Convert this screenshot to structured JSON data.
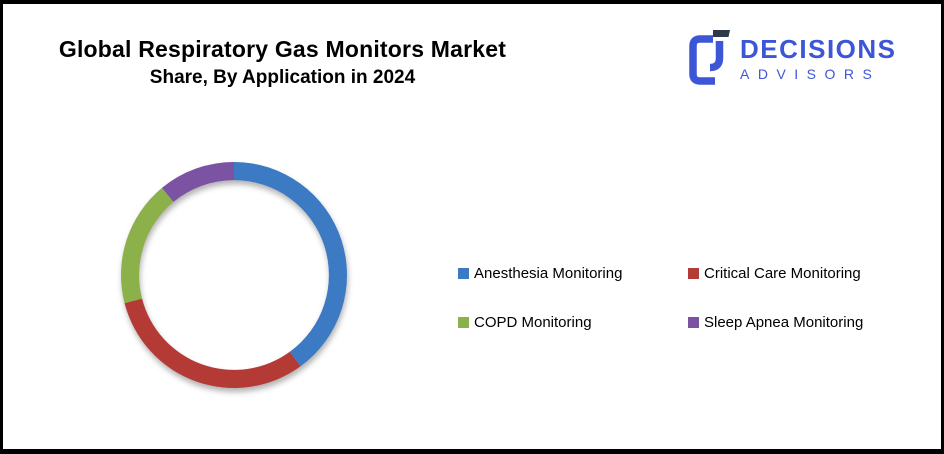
{
  "window": {
    "background": "#FFFFFF",
    "border_color": "#000000"
  },
  "header": {
    "title_line1": "Global Respiratory Gas Monitors Market",
    "title_line2": "Share, By Application in 2024"
  },
  "brand": {
    "wordmark": "DECISIONS",
    "tagline": "ADVISORS",
    "logo_icon": "decisions-advisors-monogram",
    "brand_color": "#3D56D6",
    "icon_accent_color": "#2E3A47"
  },
  "chart_data": {
    "type": "pie",
    "subtype": "donut",
    "title": "Global Respiratory Gas Monitors Market Share, By Application in 2024",
    "categories": [
      "Anesthesia Monitoring",
      "Critical Care Monitoring",
      "COPD Monitoring",
      "Sleep Apnea Monitoring"
    ],
    "values": [
      40,
      31,
      18,
      11
    ],
    "values_estimated_from_arc_angles": true,
    "data_labels_shown": false,
    "colors": [
      "#3C7AC4",
      "#B43B35",
      "#8CB04A",
      "#7C52A3"
    ],
    "start_angle_deg": 0,
    "direction": "clockwise",
    "donut_hole_ratio": 0.84,
    "legend_position": "right",
    "legend_layout": "2x2"
  }
}
